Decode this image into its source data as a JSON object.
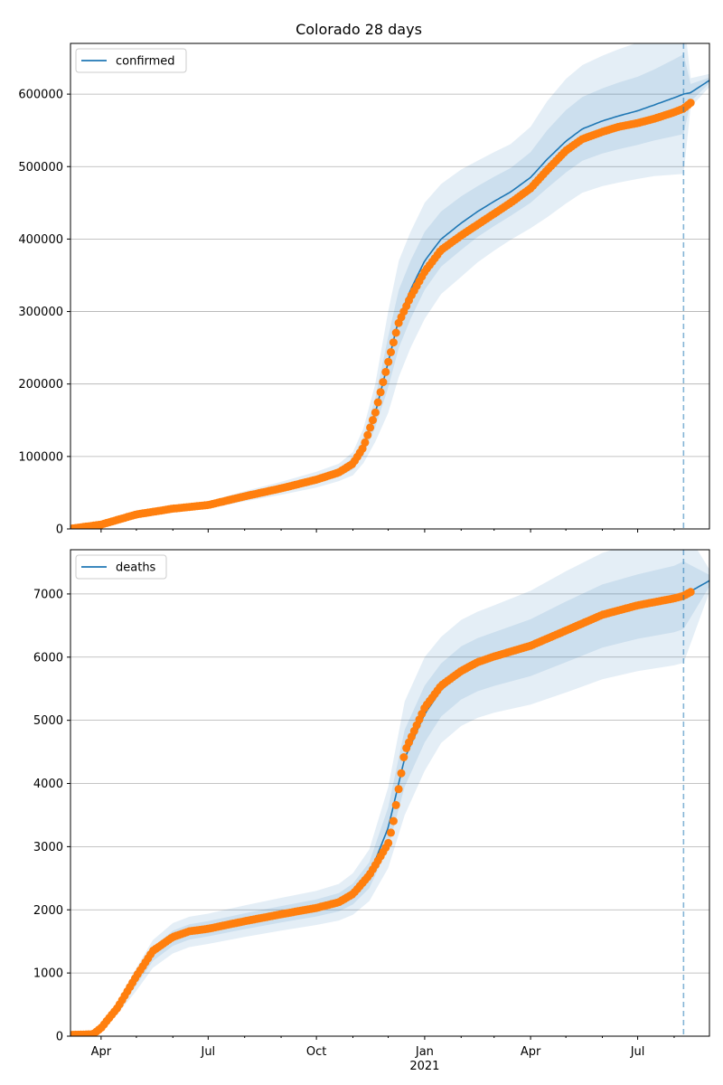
{
  "title": "Colorado 28 days",
  "chart_data": [
    {
      "type": "line",
      "legend": [
        "confirmed"
      ],
      "legend_position": "top-left",
      "grid_y": true,
      "xlim": [
        "2020-03-06",
        "2021-08-31"
      ],
      "ylim": [
        0,
        670000
      ],
      "y_ticks": [
        0,
        100000,
        200000,
        300000,
        400000,
        500000,
        600000
      ],
      "forecast_start": "2021-08-09",
      "series": [
        {
          "name": "confirmed",
          "kind": "model",
          "color": "#1f77b4",
          "x": [
            "2020-03-06",
            "2020-04-01",
            "2020-05-01",
            "2020-06-01",
            "2020-07-01",
            "2020-08-01",
            "2020-09-01",
            "2020-10-01",
            "2020-10-20",
            "2020-11-01",
            "2020-11-10",
            "2020-11-20",
            "2020-12-01",
            "2020-12-10",
            "2020-12-20",
            "2021-01-01",
            "2021-01-15",
            "2021-02-01",
            "2021-02-15",
            "2021-03-01",
            "2021-03-15",
            "2021-04-01",
            "2021-04-15",
            "2021-05-01",
            "2021-05-15",
            "2021-06-01",
            "2021-06-15",
            "2021-07-01",
            "2021-07-15",
            "2021-08-01",
            "2021-08-09",
            "2021-08-15",
            "2021-08-31"
          ],
          "y": [
            300,
            6000,
            20000,
            28000,
            33000,
            45000,
            56000,
            68000,
            78000,
            90000,
            115000,
            160000,
            230000,
            290000,
            330000,
            370000,
            400000,
            422000,
            438000,
            452000,
            465000,
            485000,
            510000,
            535000,
            552000,
            563000,
            570000,
            577000,
            585000,
            595000,
            600000,
            602000,
            619000
          ],
          "bands": [
            {
              "lower": [
                300,
                5500,
                18500,
                26000,
                30500,
                41500,
                51500,
                62500,
                72000,
                82000,
                103000,
                140000,
                195000,
                250000,
                290000,
                330000,
                362000,
                385000,
                403000,
                418000,
                432000,
                450000,
                470000,
                492000,
                508000,
                518000,
                524000,
                530000,
                536000,
                542000,
                545000,
                590000,
                615000
              ],
              "upper": [
                300,
                6500,
                21500,
                30000,
                35500,
                48500,
                60500,
                73500,
                84000,
                98000,
                127000,
                180000,
                265000,
                330000,
                370000,
                410000,
                438000,
                459000,
                473000,
                486000,
                498000,
                520000,
                550000,
                578000,
                596000,
                608000,
                616000,
                624000,
                634000,
                648000,
                655000,
                614000,
                623000
              ]
            },
            {
              "lower": [
                300,
                5000,
                17000,
                24000,
                28000,
                38000,
                47000,
                57000,
                66000,
                74000,
                91000,
                120000,
                160000,
                210000,
                250000,
                290000,
                324000,
                348000,
                368000,
                384000,
                399000,
                415000,
                430000,
                449000,
                464000,
                473000,
                478000,
                483000,
                487000,
                489000,
                490000,
                582000,
                610000
              ],
              "upper": [
                300,
                7000,
                23000,
                32000,
                38000,
                52000,
                65000,
                79000,
                90000,
                106000,
                139000,
                200000,
                300000,
                370000,
                410000,
                450000,
                476000,
                496000,
                508000,
                520000,
                531000,
                555000,
                590000,
                621000,
                640000,
                653000,
                662000,
                671000,
                683000,
                701000,
                710000,
                622000,
                628000
              ]
            }
          ]
        },
        {
          "name": "",
          "kind": "observed",
          "color": "#ff7f0e",
          "x": [
            "2020-03-06",
            "2020-04-01",
            "2020-05-01",
            "2020-06-01",
            "2020-07-01",
            "2020-08-01",
            "2020-09-01",
            "2020-10-01",
            "2020-10-20",
            "2020-11-01",
            "2020-11-10",
            "2020-11-20",
            "2020-12-01",
            "2020-12-10",
            "2020-12-20",
            "2021-01-01",
            "2021-01-15",
            "2021-02-01",
            "2021-02-15",
            "2021-03-01",
            "2021-03-15",
            "2021-04-01",
            "2021-04-15",
            "2021-05-01",
            "2021-05-15",
            "2021-06-01",
            "2021-06-15",
            "2021-07-01",
            "2021-07-15",
            "2021-08-01",
            "2021-08-09",
            "2021-08-15"
          ],
          "y": [
            300,
            6000,
            20000,
            28000,
            33000,
            45000,
            56000,
            68000,
            78000,
            90000,
            113000,
            160000,
            230000,
            285000,
            320000,
            355000,
            385000,
            405000,
            420000,
            435000,
            450000,
            470000,
            495000,
            522000,
            538000,
            548000,
            555000,
            560000,
            566000,
            575000,
            580000,
            588000
          ]
        }
      ]
    },
    {
      "type": "line",
      "legend": [
        "deaths"
      ],
      "legend_position": "top-left",
      "grid_y": true,
      "xlim": [
        "2020-03-06",
        "2021-08-31"
      ],
      "ylim": [
        0,
        7700
      ],
      "y_ticks": [
        0,
        1000,
        2000,
        3000,
        4000,
        5000,
        6000,
        7000
      ],
      "x_ticks": [
        "Apr",
        "Jul",
        "Oct",
        "Jan",
        "Apr",
        "Jul"
      ],
      "x_tick_dates": [
        "2020-04-01",
        "2020-07-01",
        "2020-10-01",
        "2021-01-01",
        "2021-04-01",
        "2021-07-01"
      ],
      "x_year_label": "2021",
      "forecast_start": "2021-08-09",
      "series": [
        {
          "name": "deaths",
          "kind": "model",
          "color": "#1f77b4",
          "x": [
            "2020-03-06",
            "2020-03-25",
            "2020-04-01",
            "2020-04-15",
            "2020-05-01",
            "2020-05-15",
            "2020-06-01",
            "2020-06-15",
            "2020-07-01",
            "2020-08-01",
            "2020-09-01",
            "2020-10-01",
            "2020-10-20",
            "2020-11-01",
            "2020-11-15",
            "2020-12-01",
            "2020-12-15",
            "2021-01-01",
            "2021-01-15",
            "2021-02-01",
            "2021-02-15",
            "2021-03-01",
            "2021-04-01",
            "2021-05-01",
            "2021-06-01",
            "2021-07-01",
            "2021-08-01",
            "2021-08-09",
            "2021-08-31"
          ],
          "y": [
            20,
            30,
            130,
            450,
            900,
            1300,
            1550,
            1650,
            1700,
            1820,
            1930,
            2030,
            2120,
            2250,
            2550,
            3300,
            4400,
            5100,
            5480,
            5750,
            5880,
            5970,
            6150,
            6400,
            6650,
            6800,
            6920,
            6980,
            7210
          ],
          "bands": [
            {
              "lower": [
                20,
                25,
                110,
                400,
                810,
                1190,
                1430,
                1530,
                1580,
                1695,
                1800,
                1895,
                1975,
                2085,
                2345,
                2980,
                3950,
                4650,
                5060,
                5330,
                5460,
                5545,
                5700,
                5920,
                6150,
                6290,
                6395,
                6445,
                7120
              ],
              "upper": [
                20,
                35,
                150,
                500,
                990,
                1410,
                1670,
                1770,
                1820,
                1945,
                2060,
                2165,
                2265,
                2415,
                2755,
                3620,
                4850,
                5550,
                5900,
                6170,
                6300,
                6395,
                6600,
                6880,
                7150,
                7310,
                7445,
                7515,
                7300
              ]
            },
            {
              "lower": [
                20,
                20,
                90,
                350,
                720,
                1080,
                1310,
                1410,
                1460,
                1570,
                1670,
                1760,
                1830,
                1920,
                2140,
                2660,
                3500,
                4200,
                4640,
                4910,
                5040,
                5120,
                5250,
                5440,
                5650,
                5780,
                5870,
                5910,
                7030
              ],
              "upper": [
                20,
                40,
                170,
                550,
                1080,
                1520,
                1790,
                1890,
                1940,
                2070,
                2190,
                2300,
                2410,
                2580,
                2960,
                3940,
                5300,
                6000,
                6320,
                6590,
                6720,
                6820,
                7050,
                7360,
                7650,
                7820,
                7970,
                8050,
                7390
              ]
            }
          ]
        },
        {
          "name": "",
          "kind": "observed",
          "color": "#ff7f0e",
          "x": [
            "2020-03-06",
            "2020-03-25",
            "2020-04-01",
            "2020-04-15",
            "2020-05-01",
            "2020-05-15",
            "2020-06-01",
            "2020-06-15",
            "2020-07-01",
            "2020-08-01",
            "2020-09-01",
            "2020-10-01",
            "2020-10-20",
            "2020-11-01",
            "2020-11-15",
            "2020-12-01",
            "2020-12-05",
            "2020-12-15",
            "2021-01-01",
            "2021-01-15",
            "2021-02-01",
            "2021-02-15",
            "2021-03-01",
            "2021-04-01",
            "2021-05-01",
            "2021-06-01",
            "2021-07-01",
            "2021-08-01",
            "2021-08-09",
            "2021-08-15"
          ],
          "y": [
            20,
            30,
            130,
            450,
            950,
            1350,
            1570,
            1660,
            1700,
            1820,
            1930,
            2030,
            2120,
            2250,
            2550,
            3050,
            3350,
            4500,
            5200,
            5550,
            5780,
            5920,
            6010,
            6180,
            6420,
            6670,
            6820,
            6930,
            6970,
            7030
          ]
        }
      ]
    }
  ]
}
